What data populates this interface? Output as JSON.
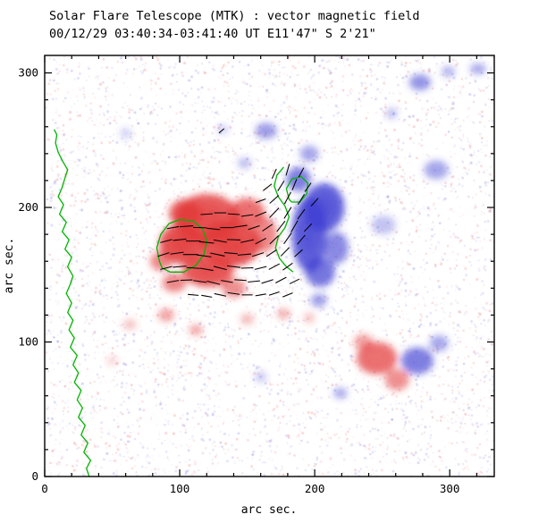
{
  "header": {
    "title_line1": "Solar Flare Telescope (MTK) : vector magnetic field",
    "title_line2": "00/12/29  03:40:34-03:41:40 UT    E11'47\"  S 2'21\""
  },
  "axes": {
    "xlabel": "arc sec.",
    "ylabel": "arc sec.",
    "x_ticks": [
      0,
      100,
      200,
      300
    ],
    "y_ticks": [
      0,
      100,
      200,
      300
    ],
    "x_range": [
      0,
      333
    ],
    "y_range": [
      0,
      313
    ],
    "minor_tick_step": 20
  },
  "colors": {
    "positive": "#e23535",
    "negative": "#3c3cd2",
    "contour": "#00b400",
    "vector": "#000000",
    "axis": "#000000",
    "background": "#ffffff"
  },
  "chart_data": {
    "type": "heatmap",
    "title": "Solar Flare Telescope (MTK) : vector magnetic field",
    "subtitle": "00/12/29  03:40:34-03:41:40 UT    E11'47\"  S 2'21\"",
    "xlabel": "arc sec.",
    "ylabel": "arc sec.",
    "xlim": [
      0,
      333
    ],
    "ylim": [
      0,
      313
    ],
    "x_ticks": [
      0,
      100,
      200,
      300
    ],
    "y_ticks": [
      0,
      100,
      200,
      300
    ],
    "encoding": "red = positive line-of-sight polarity, blue = negative polarity, green = contours/neutral lines, black segments = transverse field vectors",
    "positive_blobs": [
      [
        120,
        192,
        24,
        18,
        0.8
      ],
      [
        102,
        173,
        17,
        15,
        0.85
      ],
      [
        138,
        173,
        22,
        17,
        0.85
      ],
      [
        121,
        153,
        19,
        12,
        0.8
      ],
      [
        104,
        196,
        12,
        10,
        0.75
      ],
      [
        150,
        196,
        13,
        11,
        0.7
      ],
      [
        163,
        180,
        9,
        13,
        0.6
      ],
      [
        140,
        140,
        9,
        7,
        0.55
      ],
      [
        96,
        144,
        9,
        7,
        0.6
      ],
      [
        86,
        160,
        8,
        7,
        0.6
      ],
      [
        90,
        120,
        6,
        5,
        0.45
      ],
      [
        112,
        109,
        5,
        4,
        0.45
      ],
      [
        63,
        113,
        5,
        4,
        0.3
      ],
      [
        150,
        117,
        5,
        4,
        0.35
      ],
      [
        177,
        121,
        5,
        4,
        0.4
      ],
      [
        196,
        118,
        4,
        4,
        0.3
      ],
      [
        246,
        88,
        15,
        12,
        0.7
      ],
      [
        261,
        72,
        9,
        8,
        0.55
      ],
      [
        236,
        100,
        7,
        6,
        0.45
      ],
      [
        50,
        86,
        4,
        3,
        0.25
      ]
    ],
    "negative_blobs": [
      [
        196,
        180,
        13,
        28,
        0.8
      ],
      [
        207,
        200,
        15,
        18,
        0.8
      ],
      [
        204,
        152,
        11,
        11,
        0.7
      ],
      [
        188,
        221,
        9,
        9,
        0.65
      ],
      [
        216,
        170,
        9,
        12,
        0.6
      ],
      [
        196,
        240,
        7,
        6,
        0.45
      ],
      [
        203,
        131,
        6,
        5,
        0.5
      ],
      [
        164,
        257,
        8,
        6,
        0.5
      ],
      [
        148,
        233,
        5,
        4,
        0.35
      ],
      [
        278,
        293,
        8,
        6,
        0.55
      ],
      [
        299,
        301,
        5,
        4,
        0.4
      ],
      [
        321,
        303,
        6,
        4,
        0.45
      ],
      [
        257,
        270,
        4,
        4,
        0.35
      ],
      [
        290,
        228,
        9,
        7,
        0.45
      ],
      [
        251,
        187,
        9,
        7,
        0.3
      ],
      [
        276,
        86,
        12,
        10,
        0.65
      ],
      [
        292,
        99,
        7,
        6,
        0.45
      ],
      [
        219,
        62,
        5,
        4,
        0.45
      ],
      [
        160,
        74,
        4,
        4,
        0.3
      ],
      [
        60,
        255,
        4,
        4,
        0.25
      ],
      [
        132,
        258,
        4,
        3,
        0.3
      ]
    ],
    "neutral_lines": {
      "open_paths": [
        [
          [
            33,
            0
          ],
          [
            31,
            6
          ],
          [
            34,
            12
          ],
          [
            29,
            18
          ],
          [
            32,
            25
          ],
          [
            27,
            31
          ],
          [
            30,
            38
          ],
          [
            25,
            44
          ],
          [
            28,
            51
          ],
          [
            24,
            57
          ],
          [
            27,
            64
          ],
          [
            22,
            70
          ],
          [
            25,
            77
          ],
          [
            21,
            83
          ],
          [
            24,
            90
          ],
          [
            19,
            96
          ],
          [
            22,
            103
          ],
          [
            18,
            109
          ],
          [
            21,
            116
          ],
          [
            17,
            122
          ],
          [
            20,
            129
          ],
          [
            16,
            136
          ],
          [
            19,
            143
          ],
          [
            21,
            149
          ],
          [
            17,
            156
          ],
          [
            20,
            163
          ],
          [
            15,
            169
          ],
          [
            18,
            176
          ],
          [
            13,
            182
          ],
          [
            16,
            189
          ],
          [
            11,
            195
          ],
          [
            14,
            202
          ],
          [
            10,
            208
          ],
          [
            13,
            215
          ],
          [
            15,
            222
          ],
          [
            17,
            228
          ],
          [
            13,
            235
          ],
          [
            10,
            241
          ],
          [
            8,
            248
          ],
          [
            9,
            254
          ],
          [
            7,
            258
          ]
        ],
        [
          [
            177,
            230
          ],
          [
            172,
            224
          ],
          [
            170,
            216
          ],
          [
            173,
            208
          ],
          [
            178,
            201
          ],
          [
            181,
            193
          ],
          [
            178,
            185
          ],
          [
            173,
            178
          ],
          [
            171,
            170
          ],
          [
            174,
            162
          ],
          [
            179,
            156
          ],
          [
            184,
            152
          ]
        ]
      ],
      "closed_loops": [
        [
          [
            85,
            160
          ],
          [
            83,
            170
          ],
          [
            86,
            180
          ],
          [
            92,
            188
          ],
          [
            100,
            191
          ],
          [
            110,
            190
          ],
          [
            117,
            184
          ],
          [
            120,
            175
          ],
          [
            118,
            165
          ],
          [
            112,
            157
          ],
          [
            103,
            152
          ],
          [
            93,
            152
          ],
          [
            87,
            155
          ]
        ],
        [
          [
            181,
            206
          ],
          [
            179,
            214
          ],
          [
            183,
            221
          ],
          [
            190,
            223
          ],
          [
            195,
            218
          ],
          [
            194,
            210
          ],
          [
            189,
            204
          ],
          [
            183,
            204
          ]
        ]
      ]
    },
    "vectors": [
      [
        110,
        135,
        -5,
        8
      ],
      [
        120,
        134,
        -10,
        8
      ],
      [
        130,
        135,
        -12,
        9
      ],
      [
        140,
        136,
        -8,
        9
      ],
      [
        150,
        135,
        0,
        8
      ],
      [
        160,
        135,
        10,
        8
      ],
      [
        170,
        136,
        18,
        8
      ],
      [
        180,
        135,
        22,
        8
      ],
      [
        95,
        145,
        10,
        9
      ],
      [
        105,
        146,
        2,
        9
      ],
      [
        115,
        145,
        -8,
        10
      ],
      [
        125,
        144,
        -14,
        10
      ],
      [
        135,
        145,
        -10,
        9
      ],
      [
        145,
        146,
        -4,
        9
      ],
      [
        155,
        145,
        6,
        9
      ],
      [
        165,
        145,
        18,
        9
      ],
      [
        175,
        146,
        28,
        9
      ],
      [
        185,
        145,
        26,
        8
      ],
      [
        90,
        155,
        14,
        9
      ],
      [
        100,
        156,
        5,
        10
      ],
      [
        110,
        155,
        -4,
        10
      ],
      [
        120,
        154,
        -10,
        10
      ],
      [
        130,
        155,
        -14,
        10
      ],
      [
        140,
        156,
        -7,
        10
      ],
      [
        150,
        155,
        2,
        9
      ],
      [
        160,
        155,
        14,
        9
      ],
      [
        170,
        156,
        28,
        9
      ],
      [
        180,
        156,
        36,
        9
      ],
      [
        88,
        165,
        18,
        9
      ],
      [
        98,
        166,
        8,
        10
      ],
      [
        108,
        165,
        0,
        11
      ],
      [
        118,
        164,
        -8,
        11
      ],
      [
        128,
        165,
        -12,
        11
      ],
      [
        138,
        166,
        -5,
        10
      ],
      [
        148,
        165,
        5,
        10
      ],
      [
        158,
        165,
        18,
        9
      ],
      [
        168,
        166,
        34,
        9
      ],
      [
        178,
        167,
        46,
        9
      ],
      [
        188,
        166,
        42,
        8
      ],
      [
        90,
        175,
        15,
        9
      ],
      [
        100,
        176,
        6,
        10
      ],
      [
        110,
        175,
        0,
        11
      ],
      [
        120,
        174,
        -6,
        11
      ],
      [
        130,
        175,
        -10,
        10
      ],
      [
        140,
        176,
        -2,
        10
      ],
      [
        150,
        175,
        12,
        10
      ],
      [
        160,
        175,
        28,
        9
      ],
      [
        170,
        176,
        44,
        9
      ],
      [
        180,
        177,
        55,
        10
      ],
      [
        190,
        176,
        50,
        9
      ],
      [
        95,
        185,
        10,
        9
      ],
      [
        105,
        186,
        4,
        10
      ],
      [
        115,
        185,
        -2,
        10
      ],
      [
        125,
        184,
        -6,
        10
      ],
      [
        135,
        185,
        0,
        10
      ],
      [
        145,
        186,
        8,
        10
      ],
      [
        155,
        185,
        18,
        9
      ],
      [
        165,
        185,
        34,
        9
      ],
      [
        175,
        186,
        52,
        10
      ],
      [
        185,
        186,
        60,
        10
      ],
      [
        195,
        185,
        46,
        8
      ],
      [
        120,
        195,
        4,
        9
      ],
      [
        130,
        196,
        0,
        9
      ],
      [
        140,
        195,
        -4,
        9
      ],
      [
        150,
        194,
        8,
        9
      ],
      [
        160,
        195,
        22,
        9
      ],
      [
        170,
        196,
        46,
        10
      ],
      [
        180,
        196,
        58,
        10
      ],
      [
        190,
        195,
        54,
        9
      ],
      [
        160,
        205,
        20,
        8
      ],
      [
        170,
        206,
        42,
        9
      ],
      [
        180,
        207,
        62,
        10
      ],
      [
        190,
        206,
        58,
        9
      ],
      [
        200,
        204,
        48,
        8
      ],
      [
        165,
        215,
        38,
        8
      ],
      [
        175,
        216,
        58,
        9
      ],
      [
        185,
        217,
        68,
        9
      ],
      [
        195,
        215,
        55,
        8
      ],
      [
        170,
        225,
        66,
        8
      ],
      [
        180,
        228,
        74,
        9
      ],
      [
        190,
        226,
        62,
        8
      ],
      [
        131,
        257,
        40,
        5
      ]
    ],
    "noise": {
      "seed": 12345,
      "count": 5200
    }
  }
}
